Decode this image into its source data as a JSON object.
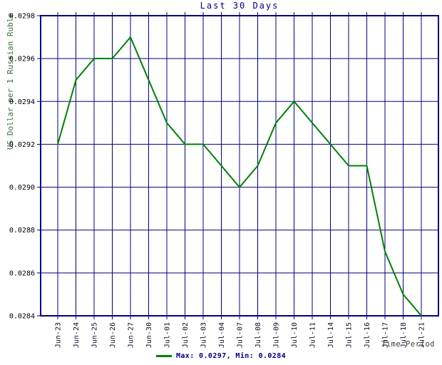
{
  "colors": {
    "grid": "#000080",
    "border": "#000080",
    "line": "#008000",
    "title": "#000080",
    "y_axis_title": "#3d6b3d",
    "x_axis_title": "#3b3b3b",
    "tick_label": "#101028",
    "legend_text": "#000080"
  },
  "chart_data": {
    "type": "line",
    "title": "Last 30 Days",
    "xlabel": "Time Period",
    "ylabel": "US Dollar per 1 Russian Ruble",
    "categories": [
      "Jun-23",
      "Jun-24",
      "Jun-25",
      "Jun-26",
      "Jun-27",
      "Jun-30",
      "Jul-01",
      "Jul-02",
      "Jul-03",
      "Jul-04",
      "Jul-07",
      "Jul-08",
      "Jul-09",
      "Jul-10",
      "Jul-11",
      "Jul-14",
      "Jul-15",
      "Jul-16",
      "Jul-17",
      "Jul-18",
      "Jul-21"
    ],
    "values": [
      0.0292,
      0.0295,
      0.0296,
      0.0296,
      0.0297,
      0.0295,
      0.0293,
      0.0292,
      0.0292,
      0.0291,
      0.029,
      0.0291,
      0.0293,
      0.0294,
      0.0293,
      0.0292,
      0.0291,
      0.0291,
      0.0287,
      0.0285,
      0.0284
    ],
    "ylim": [
      0.0284,
      0.0298
    ],
    "ytick_step": 0.0002,
    "yticks": [
      "0.0298",
      "0.0296",
      "0.0294",
      "0.0292",
      "0.0290",
      "0.0288",
      "0.0286",
      "0.0284"
    ],
    "grid": true,
    "line_color": "#008000",
    "legend": {
      "position": "bottom-center",
      "label": "Max: 0.0297, Min: 0.0284"
    }
  }
}
